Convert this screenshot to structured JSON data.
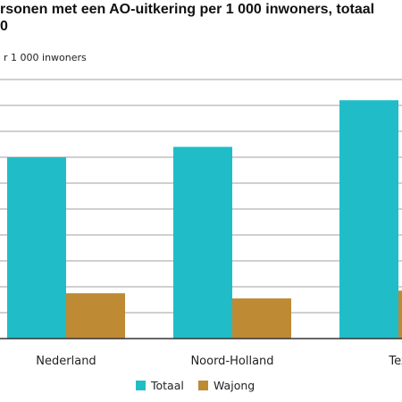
{
  "title": {
    "line1": "rsonen met een AO-uitkering per 1 000 inwoners, totaal",
    "line2": "0"
  },
  "colors": {
    "totaal": "#20BDC8",
    "wajong": "#BE8A34",
    "grid": "#A0A0A0",
    "axis": "#333333"
  },
  "chart_data": {
    "type": "bar",
    "ylabel": "r 1 000 inwoners",
    "categories": [
      "Nederland",
      "Noord-Holland",
      "Tex"
    ],
    "series": [
      {
        "name": "Totaal",
        "values": [
          70,
          74,
          92
        ]
      },
      {
        "name": "Wajong",
        "values": [
          17.5,
          15.5,
          18.5
        ]
      }
    ],
    "ylim": [
      0,
      100
    ],
    "grid": true,
    "legend_position": "bottom"
  }
}
